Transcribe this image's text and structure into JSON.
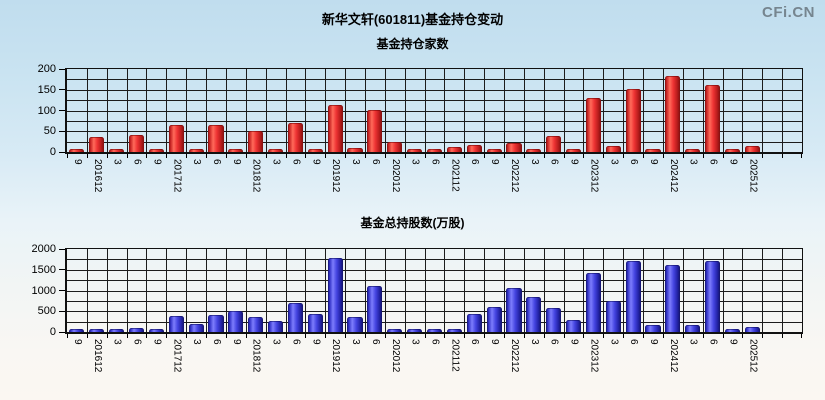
{
  "page": {
    "title": "新华文轩(601811)基金持仓变动",
    "watermark": "CFi.CN"
  },
  "colors": {
    "top_bar_accent": "#ee3333",
    "bottom_bar_accent": "#4444e0",
    "background_top": "#c0ddee",
    "background_bottom": "#fbf7f2",
    "grid": "#1c1c1c",
    "watermark": "#76858f"
  },
  "chart_data": [
    {
      "type": "bar",
      "title": "基金持仓家数",
      "xlabel": "",
      "ylabel": "",
      "ylim": [
        0,
        200
      ],
      "y_major_step": 50,
      "y_minor_step": 25,
      "y_tick_labels": [
        "0",
        "50",
        "100",
        "150",
        "200"
      ],
      "grid": true,
      "legend": "none",
      "bar_color": "red",
      "extra_slots": 2,
      "categories": [
        "9",
        "201612",
        "3",
        "6",
        "9",
        "201712",
        "3",
        "6",
        "9",
        "201812",
        "3",
        "6",
        "9",
        "201912",
        "3",
        "6",
        "202012",
        "3",
        "6",
        "202112",
        "6",
        "9",
        "202212",
        "3",
        "6",
        "9",
        "202312",
        "3",
        "6",
        "9",
        "202412",
        "3",
        "6",
        "9",
        "202512"
      ],
      "values": [
        5,
        33,
        2,
        38,
        2,
        62,
        3,
        62,
        5,
        48,
        3,
        68,
        5,
        110,
        7,
        100,
        22,
        2,
        5,
        9,
        15,
        2,
        20,
        2,
        35,
        5,
        127,
        11,
        150,
        2,
        180,
        4,
        160,
        2,
        13
      ]
    },
    {
      "type": "bar",
      "title": "基金总持股数(万股)",
      "xlabel": "",
      "ylabel": "",
      "ylim": [
        0,
        2000
      ],
      "y_major_step": 500,
      "y_minor_step": 250,
      "y_tick_labels": [
        "0",
        "500",
        "1000",
        "1500",
        "2000"
      ],
      "grid": true,
      "legend": "none",
      "bar_color": "blue",
      "extra_slots": 2,
      "categories": [
        "9",
        "201612",
        "3",
        "6",
        "9",
        "201712",
        "3",
        "6",
        "9",
        "201812",
        "3",
        "6",
        "9",
        "201912",
        "3",
        "6",
        "202012",
        "3",
        "6",
        "202112",
        "6",
        "9",
        "202212",
        "3",
        "6",
        "9",
        "202312",
        "3",
        "6",
        "9",
        "202412",
        "3",
        "6",
        "9",
        "202512"
      ],
      "values": [
        30,
        30,
        20,
        80,
        45,
        370,
        170,
        395,
        475,
        340,
        250,
        675,
        400,
        1750,
        340,
        1090,
        35,
        20,
        15,
        50,
        420,
        585,
        1025,
        820,
        550,
        275,
        1400,
        715,
        1690,
        140,
        1590,
        140,
        1695,
        20,
        90
      ]
    }
  ]
}
